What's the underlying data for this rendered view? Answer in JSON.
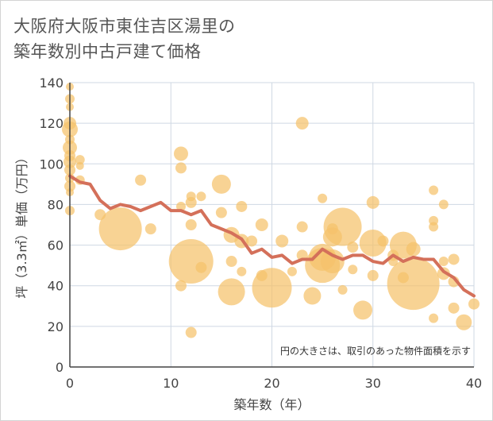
{
  "title_line1": "大阪府大阪市東住吉区湯里の",
  "title_line2": "築年数別中古戸建て価格",
  "colors": {
    "bubble": "#f5c26b",
    "line": "#d4705a",
    "grid": "#cfd8e3",
    "axis": "#444444"
  },
  "chart_data": {
    "type": "scatter",
    "title": "大阪府大阪市東住吉区湯里の築年数別中古戸建て価格",
    "xlabel": "築年数（年）",
    "ylabel": "坪（3.3㎡）単価（万円）",
    "xlim": [
      0,
      40
    ],
    "ylim": [
      0,
      140
    ],
    "xticks": [
      0,
      10,
      20,
      30,
      40
    ],
    "yticks": [
      0,
      20,
      40,
      60,
      80,
      100,
      120,
      140
    ],
    "grid": true,
    "annotation": "円の大きさは、取引のあった物件面積を示す",
    "bubbles": [
      {
        "x": 0,
        "y": 138,
        "s": 5
      },
      {
        "x": 0,
        "y": 132,
        "s": 6
      },
      {
        "x": 0,
        "y": 128,
        "s": 5
      },
      {
        "x": 0,
        "y": 120,
        "s": 8
      },
      {
        "x": 0,
        "y": 117,
        "s": 10
      },
      {
        "x": 0,
        "y": 112,
        "s": 6
      },
      {
        "x": 0,
        "y": 108,
        "s": 9
      },
      {
        "x": 0,
        "y": 104,
        "s": 7
      },
      {
        "x": 0,
        "y": 101,
        "s": 8
      },
      {
        "x": 0,
        "y": 97,
        "s": 7
      },
      {
        "x": 0,
        "y": 93,
        "s": 6
      },
      {
        "x": 0,
        "y": 89,
        "s": 7
      },
      {
        "x": 0,
        "y": 86,
        "s": 5
      },
      {
        "x": 0,
        "y": 77,
        "s": 6
      },
      {
        "x": 1,
        "y": 102,
        "s": 6
      },
      {
        "x": 1,
        "y": 99,
        "s": 5
      },
      {
        "x": 1,
        "y": 92,
        "s": 6
      },
      {
        "x": 3,
        "y": 75,
        "s": 7
      },
      {
        "x": 5,
        "y": 68,
        "s": 27
      },
      {
        "x": 7,
        "y": 92,
        "s": 7
      },
      {
        "x": 8,
        "y": 68,
        "s": 7
      },
      {
        "x": 11,
        "y": 105,
        "s": 9
      },
      {
        "x": 11,
        "y": 98,
        "s": 7
      },
      {
        "x": 11,
        "y": 79,
        "s": 6
      },
      {
        "x": 11,
        "y": 40,
        "s": 7
      },
      {
        "x": 12,
        "y": 84,
        "s": 6
      },
      {
        "x": 12,
        "y": 81,
        "s": 7
      },
      {
        "x": 12,
        "y": 70,
        "s": 7
      },
      {
        "x": 12,
        "y": 52,
        "s": 28
      },
      {
        "x": 12,
        "y": 17,
        "s": 7
      },
      {
        "x": 13,
        "y": 84,
        "s": 6
      },
      {
        "x": 13,
        "y": 49,
        "s": 7
      },
      {
        "x": 15,
        "y": 90,
        "s": 12
      },
      {
        "x": 15,
        "y": 76,
        "s": 7
      },
      {
        "x": 16,
        "y": 65,
        "s": 10
      },
      {
        "x": 16,
        "y": 52,
        "s": 7
      },
      {
        "x": 16,
        "y": 37,
        "s": 17
      },
      {
        "x": 17,
        "y": 79,
        "s": 7
      },
      {
        "x": 17,
        "y": 62,
        "s": 9
      },
      {
        "x": 17,
        "y": 47,
        "s": 6
      },
      {
        "x": 18,
        "y": 62,
        "s": 7
      },
      {
        "x": 19,
        "y": 70,
        "s": 8
      },
      {
        "x": 19,
        "y": 45,
        "s": 7
      },
      {
        "x": 20,
        "y": 39,
        "s": 25
      },
      {
        "x": 21,
        "y": 62,
        "s": 8
      },
      {
        "x": 22,
        "y": 47,
        "s": 6
      },
      {
        "x": 23,
        "y": 120,
        "s": 8
      },
      {
        "x": 23,
        "y": 69,
        "s": 7
      },
      {
        "x": 23,
        "y": 55,
        "s": 7
      },
      {
        "x": 24,
        "y": 35,
        "s": 11
      },
      {
        "x": 25,
        "y": 83,
        "s": 6
      },
      {
        "x": 25,
        "y": 54,
        "s": 17
      },
      {
        "x": 25,
        "y": 50,
        "s": 22
      },
      {
        "x": 26,
        "y": 68,
        "s": 7
      },
      {
        "x": 26,
        "y": 64,
        "s": 12
      },
      {
        "x": 26,
        "y": 52,
        "s": 15
      },
      {
        "x": 27,
        "y": 69,
        "s": 24
      },
      {
        "x": 27,
        "y": 38,
        "s": 6
      },
      {
        "x": 28,
        "y": 59,
        "s": 7
      },
      {
        "x": 28,
        "y": 48,
        "s": 6
      },
      {
        "x": 29,
        "y": 28,
        "s": 12
      },
      {
        "x": 30,
        "y": 81,
        "s": 8
      },
      {
        "x": 30,
        "y": 61,
        "s": 17
      },
      {
        "x": 30,
        "y": 45,
        "s": 7
      },
      {
        "x": 31,
        "y": 62,
        "s": 7
      },
      {
        "x": 32,
        "y": 55,
        "s": 7
      },
      {
        "x": 32,
        "y": 52,
        "s": 6
      },
      {
        "x": 33,
        "y": 60,
        "s": 17
      },
      {
        "x": 33,
        "y": 44,
        "s": 7
      },
      {
        "x": 34,
        "y": 41,
        "s": 33
      },
      {
        "x": 34,
        "y": 58,
        "s": 9
      },
      {
        "x": 36,
        "y": 87,
        "s": 6
      },
      {
        "x": 36,
        "y": 72,
        "s": 6
      },
      {
        "x": 36,
        "y": 69,
        "s": 6
      },
      {
        "x": 36,
        "y": 24,
        "s": 6
      },
      {
        "x": 37,
        "y": 80,
        "s": 6
      },
      {
        "x": 37,
        "y": 52,
        "s": 6
      },
      {
        "x": 37,
        "y": 46,
        "s": 8
      },
      {
        "x": 38,
        "y": 53,
        "s": 7
      },
      {
        "x": 38,
        "y": 42,
        "s": 7
      },
      {
        "x": 38,
        "y": 29,
        "s": 7
      },
      {
        "x": 39,
        "y": 22,
        "s": 10
      },
      {
        "x": 40,
        "y": 31,
        "s": 7
      }
    ],
    "line": {
      "x": [
        0,
        1,
        2,
        3,
        4,
        5,
        6,
        7,
        8,
        9,
        10,
        11,
        12,
        13,
        14,
        15,
        16,
        17,
        18,
        19,
        20,
        21,
        22,
        23,
        24,
        25,
        26,
        27,
        28,
        29,
        30,
        31,
        32,
        33,
        34,
        35,
        36,
        37,
        38,
        39,
        40
      ],
      "y": [
        94,
        91,
        90,
        82,
        78,
        80,
        79,
        77,
        79,
        81,
        77,
        77,
        75,
        77,
        70,
        68,
        66,
        63,
        56,
        58,
        54,
        55,
        51,
        53,
        53,
        58,
        55,
        53,
        55,
        55,
        52,
        51,
        55,
        52,
        54,
        53,
        53,
        47,
        44,
        38,
        35
      ]
    }
  }
}
